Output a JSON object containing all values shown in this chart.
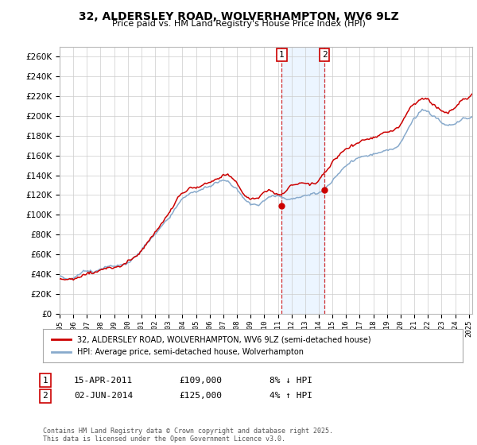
{
  "title": "32, ALDERSLEY ROAD, WOLVERHAMPTON, WV6 9LZ",
  "subtitle": "Price paid vs. HM Land Registry's House Price Index (HPI)",
  "ylim": [
    0,
    270000
  ],
  "yticks": [
    0,
    20000,
    40000,
    60000,
    80000,
    100000,
    120000,
    140000,
    160000,
    180000,
    200000,
    220000,
    240000,
    260000
  ],
  "transaction1_date": 2011.29,
  "transaction1_label": "1",
  "transaction1_price": 109000,
  "transaction1_text": "15-APR-2011",
  "transaction1_pct": "8% ↓ HPI",
  "transaction2_date": 2014.42,
  "transaction2_label": "2",
  "transaction2_price": 125000,
  "transaction2_text": "02-JUN-2014",
  "transaction2_pct": "4% ↑ HPI",
  "legend_label1": "32, ALDERSLEY ROAD, WOLVERHAMPTON, WV6 9LZ (semi-detached house)",
  "legend_label2": "HPI: Average price, semi-detached house, Wolverhampton",
  "line1_color": "#cc0000",
  "line2_color": "#88aacc",
  "dashed_color": "#cc0000",
  "shade_color": "#ddeeff",
  "footer": "Contains HM Land Registry data © Crown copyright and database right 2025.\nThis data is licensed under the Open Government Licence v3.0.",
  "background_color": "#ffffff",
  "grid_color": "#cccccc"
}
